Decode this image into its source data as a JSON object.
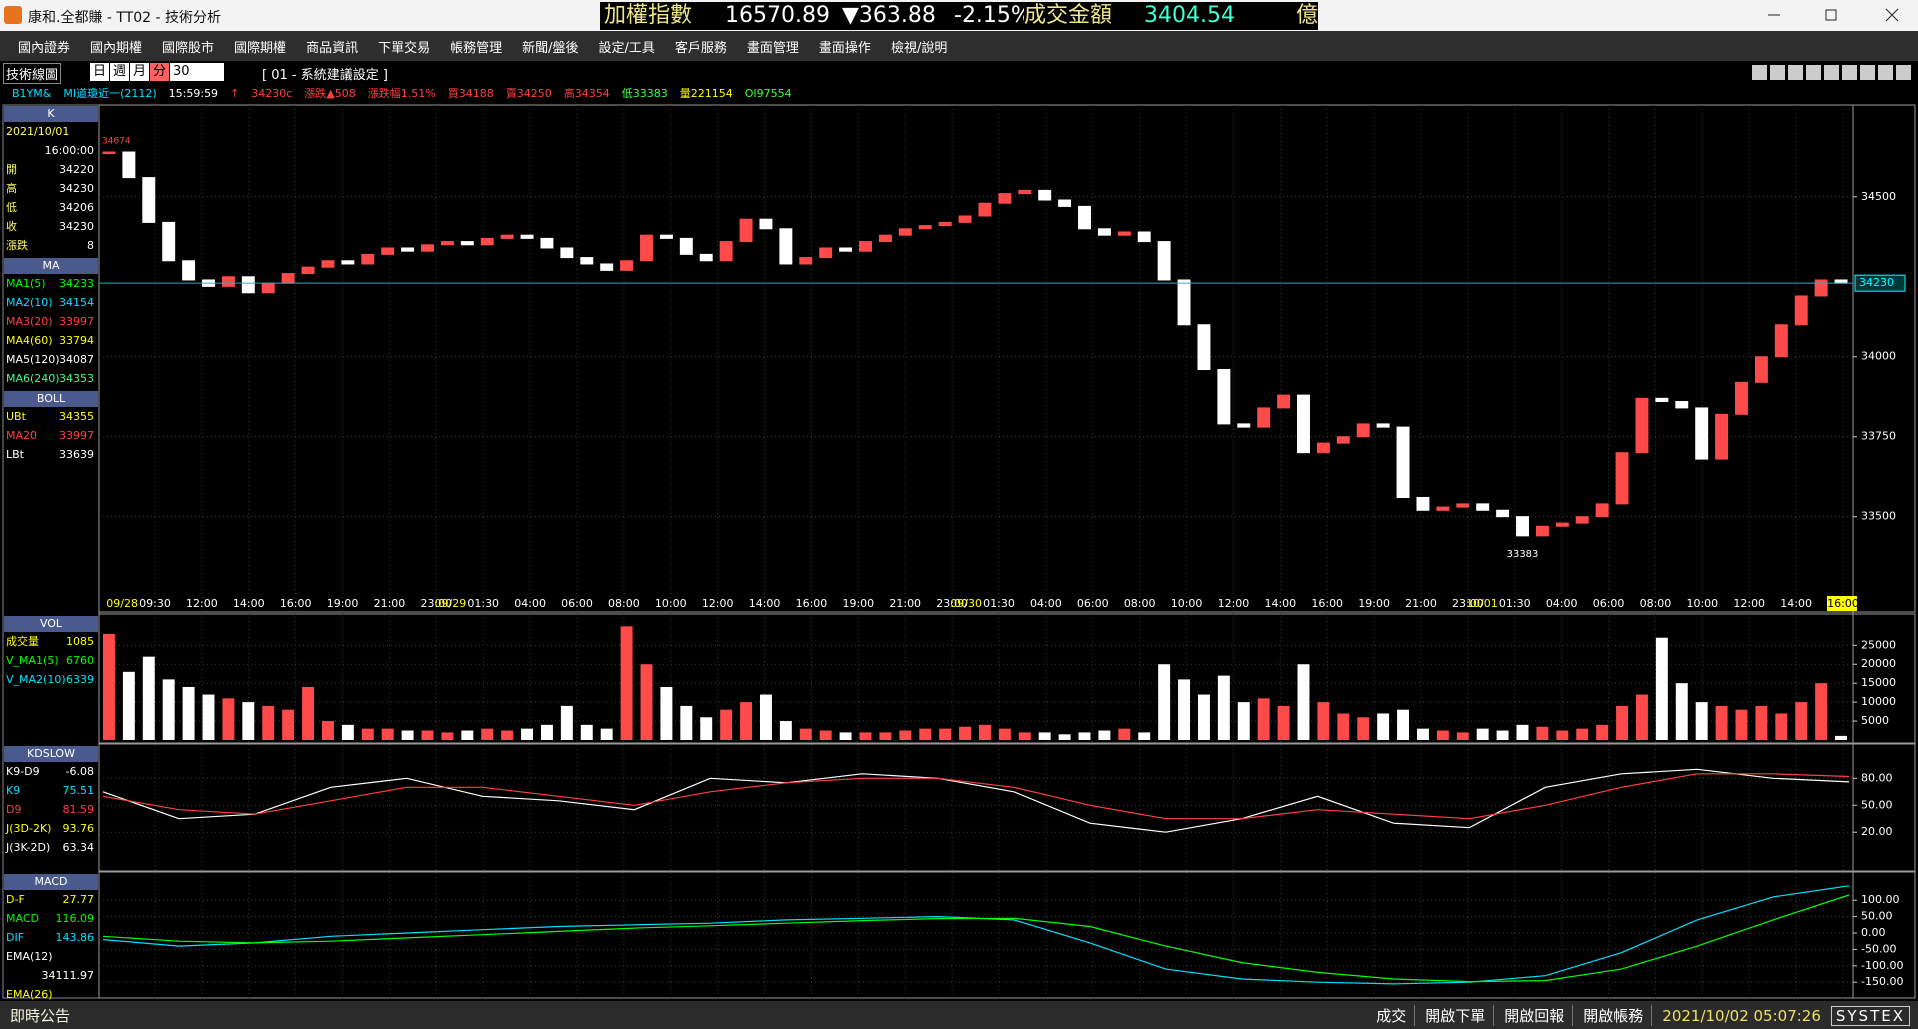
{
  "title_bar": {
    "app_title": "康和.全都賺 - TT02 - 技術分析",
    "index_name": "加權指數",
    "index_value": "16570.89",
    "change": "▼363.88",
    "change_pct": "-2.15%",
    "turnover_label": "成交金額",
    "turnover": "3404.54",
    "unit": "億"
  },
  "menu": [
    "國內證券",
    "國內期權",
    "國際股市",
    "國際期權",
    "商品資訊",
    "下單交易",
    "帳務管理",
    "新聞/盤後",
    "設定/工具",
    "客戶服務",
    "畫面管理",
    "畫面操作",
    "檢視/說明"
  ],
  "toolbar": {
    "title": "技術線圖",
    "periods": [
      "日",
      "週",
      "月",
      "分"
    ],
    "interval": "30",
    "template": "[ 01 - 系統建議設定 ]"
  },
  "quote_line": [
    {
      "text": "B1YM&",
      "color": "#00e0ff"
    },
    {
      "text": "MI道瓊近一(2112)",
      "color": "#00e0ff"
    },
    {
      "text": "15:59:59",
      "color": "#ffffff"
    },
    {
      "text": "↑",
      "color": "#ff4040"
    },
    {
      "text": "34230c",
      "color": "#ff4040"
    },
    {
      "text": "漲跌▲508",
      "color": "#ff4040"
    },
    {
      "text": "漲跌幅1.51%",
      "color": "#ff4040"
    },
    {
      "text": "買34188",
      "color": "#ff4040"
    },
    {
      "text": "賣34250",
      "color": "#ff4040"
    },
    {
      "text": "高34354",
      "color": "#ff4040"
    },
    {
      "text": "低33383",
      "color": "#40ff40"
    },
    {
      "text": "量221154",
      "color": "#ffff00"
    },
    {
      "text": "OI97554",
      "color": "#40ff40"
    }
  ],
  "left_panel": [
    {
      "header": "K",
      "rows": [
        {
          "label": "2021/10/01"
        },
        {
          "value": "16:00:00"
        },
        {
          "label": "開",
          "value": "34220"
        },
        {
          "label": "高",
          "value": "34230"
        },
        {
          "label": "低",
          "value": "34206"
        },
        {
          "label": "收",
          "value": "34230"
        },
        {
          "label": "漲跌",
          "value": "8"
        }
      ]
    },
    {
      "header": "MA",
      "rows": [
        {
          "label": "MA1(5)",
          "value": "34233",
          "color": "#00ff00"
        },
        {
          "label": "MA2(10)",
          "value": "34154",
          "color": "#00e0ff"
        },
        {
          "label": "MA3(20)",
          "value": "33997",
          "color": "#ff4040"
        },
        {
          "label": "MA4(60)",
          "value": "33794",
          "color": "#ffff00"
        },
        {
          "label": "MA5(120)",
          "value": "34087",
          "color": "#ffffff"
        },
        {
          "label": "MA6(240)",
          "value": "34353",
          "color": "#40ff80"
        }
      ]
    },
    {
      "header": "BOLL",
      "rows": [
        {
          "label": "UBt",
          "value": "34355",
          "color": "#ffff00"
        },
        {
          "label": "MA20",
          "value": "33997",
          "color": "#ff4040"
        },
        {
          "label": "LBt",
          "value": "33639",
          "color": "#ffffff"
        }
      ]
    },
    {
      "header": "VOL",
      "rows": [
        {
          "label": "成交量",
          "value": "1085",
          "color": "#ffff00"
        },
        {
          "label": "V_MA1(5)",
          "value": "6760",
          "color": "#00ff00"
        },
        {
          "label": "V_MA2(10)",
          "value": "6339",
          "color": "#00e0ff"
        }
      ]
    },
    {
      "header": "KDSLOW",
      "rows": [
        {
          "label": "K9-D9",
          "value": "-6.08",
          "color": "#ffffff"
        },
        {
          "label": "K9",
          "value": "75.51",
          "color": "#00e0ff"
        },
        {
          "label": "D9",
          "value": "81.59",
          "color": "#ff4040"
        },
        {
          "label": "J(3D-2K)",
          "value": "93.76",
          "color": "#ffff00"
        },
        {
          "label": "J(3K-2D)",
          "value": "63.34",
          "color": "#ffffff"
        }
      ]
    },
    {
      "header": "MACD",
      "rows": [
        {
          "label": "D-F",
          "value": "27.77",
          "color": "#ffff00"
        },
        {
          "label": "MACD",
          "value": "116.09",
          "color": "#00ff00"
        },
        {
          "label": "DIF",
          "value": "143.86",
          "color": "#00e0ff"
        },
        {
          "label": "EMA(12)",
          "color": "#ffffff"
        },
        {
          "value": "34111.97",
          "color": "#ffffff"
        },
        {
          "label": "EMA(26)",
          "color": "#ffff00"
        }
      ]
    }
  ],
  "price_chart": {
    "type": "candlestick",
    "up_color": "#ff4a4a",
    "down_color": "#ffffff",
    "closes": [
      34640,
      34560,
      34420,
      34300,
      34240,
      34220,
      34250,
      34200,
      34230,
      34260,
      34280,
      34300,
      34290,
      34320,
      34340,
      34330,
      34350,
      34360,
      34350,
      34370,
      34380,
      34370,
      34340,
      34310,
      34290,
      34270,
      34300,
      34380,
      34370,
      34320,
      34300,
      34360,
      34430,
      34400,
      34290,
      34310,
      34340,
      34330,
      34360,
      34380,
      34400,
      34410,
      34420,
      34440,
      34480,
      34510,
      34520,
      34490,
      34470,
      34400,
      34380,
      34390,
      34360,
      34240,
      34100,
      33960,
      33790,
      33780,
      33840,
      33880,
      33700,
      33730,
      33750,
      33790,
      33780,
      33560,
      33520,
      33530,
      33540,
      33520,
      33500,
      33440,
      33470,
      33480,
      33500,
      33540,
      33700,
      33870,
      33860,
      33840,
      33680,
      33820,
      33920,
      34000,
      34100,
      34190,
      34240,
      34230
    ],
    "ylim": [
      33252,
      34787
    ],
    "yticks": [
      34500,
      34000,
      33750,
      33500
    ],
    "last_price": 34230,
    "high_mark": 34674,
    "low_mark": 33383,
    "x_labels": [
      {
        "date": "09/28",
        "time": "09:30"
      },
      "12:00",
      "14:00",
      "16:00",
      "19:00",
      "21:00",
      "23:00",
      {
        "date": "09/29",
        "time": "01:30"
      },
      "04:00",
      "06:00",
      "08:00",
      "10:00",
      "12:00",
      "14:00",
      "16:00",
      "19:00",
      "21:00",
      "23:00",
      {
        "date": "09/30",
        "time": "01:30"
      },
      "04:00",
      "06:00",
      "08:00",
      "10:00",
      "12:00",
      "14:00",
      "16:00",
      "19:00",
      "21:00",
      "23:00",
      {
        "date": "10/01",
        "time": "01:30"
      },
      "04:00",
      "06:00",
      "08:00",
      "10:00",
      "12:00",
      "14:00",
      "16:00"
    ]
  },
  "volume_chart": {
    "type": "bar",
    "values": [
      28000,
      18000,
      22000,
      16000,
      14000,
      12000,
      11000,
      10000,
      9000,
      8000,
      14000,
      5000,
      4000,
      3000,
      3000,
      2500,
      2500,
      2000,
      2500,
      3000,
      2500,
      3000,
      4000,
      9000,
      4000,
      3000,
      30000,
      20000,
      14000,
      9000,
      6000,
      8000,
      10000,
      12000,
      5000,
      3000,
      2500,
      2000,
      2000,
      2000,
      2500,
      3000,
      3000,
      3500,
      4000,
      3000,
      2000,
      2000,
      1500,
      2000,
      2500,
      3000,
      2000,
      20000,
      16000,
      12000,
      17000,
      10000,
      11000,
      9000,
      20000,
      10000,
      7000,
      6000,
      7000,
      8000,
      3000,
      2500,
      2000,
      3000,
      2500,
      4000,
      3500,
      2500,
      3000,
      4000,
      9000,
      12000,
      27000,
      15000,
      10000,
      9000,
      8000,
      9000,
      7000,
      10000,
      15000,
      1085
    ],
    "ylim": [
      0,
      33000
    ],
    "yticks": [
      5000,
      10000,
      15000,
      20000,
      25000
    ]
  },
  "kd_chart": {
    "type": "line",
    "ylim": [
      -22,
      117
    ],
    "yticks": [
      {
        "value": 80,
        "label": "80.00"
      },
      {
        "value": 50,
        "label": "50.00"
      },
      {
        "value": 20,
        "label": "20.00"
      }
    ],
    "series": [
      {
        "color": "#ffffff",
        "values": [
          65,
          35,
          40,
          70,
          80,
          60,
          55,
          45,
          80,
          75,
          85,
          80,
          65,
          30,
          20,
          35,
          60,
          30,
          25,
          70,
          85,
          90,
          80,
          76
        ]
      },
      {
        "color": "#ff4040",
        "values": [
          60,
          45,
          40,
          55,
          70,
          70,
          60,
          50,
          65,
          75,
          80,
          80,
          70,
          50,
          35,
          35,
          45,
          40,
          35,
          50,
          70,
          85,
          85,
          82
        ]
      }
    ]
  },
  "macd_chart": {
    "type": "line",
    "ylim": [
      -195,
      186
    ],
    "yticks": [
      {
        "value": 100,
        "label": "100.00"
      },
      {
        "value": 50,
        "label": "50.00"
      },
      {
        "value": 0,
        "label": "0.00"
      },
      {
        "value": -50,
        "label": "-50.00"
      },
      {
        "value": -100,
        "label": "-100.00"
      },
      {
        "value": -150,
        "label": "-150.00"
      }
    ],
    "series": [
      {
        "color": "#00e0ff",
        "values": [
          -20,
          -40,
          -30,
          -10,
          0,
          10,
          20,
          25,
          30,
          40,
          45,
          50,
          40,
          -30,
          -110,
          -140,
          -150,
          -155,
          -150,
          -130,
          -60,
          40,
          110,
          144
        ]
      },
      {
        "color": "#00ff00",
        "values": [
          -10,
          -25,
          -30,
          -25,
          -15,
          -5,
          5,
          15,
          22,
          30,
          38,
          44,
          45,
          20,
          -40,
          -90,
          -120,
          -140,
          -148,
          -145,
          -110,
          -40,
          40,
          116
        ]
      }
    ]
  },
  "status_bar": {
    "notice": "即時公告",
    "items": [
      "成交",
      "開啟下單",
      "開啟回報",
      "開啟帳務"
    ],
    "datetime": "2021/10/02 05:07:26",
    "brand": "SYSTEX"
  }
}
